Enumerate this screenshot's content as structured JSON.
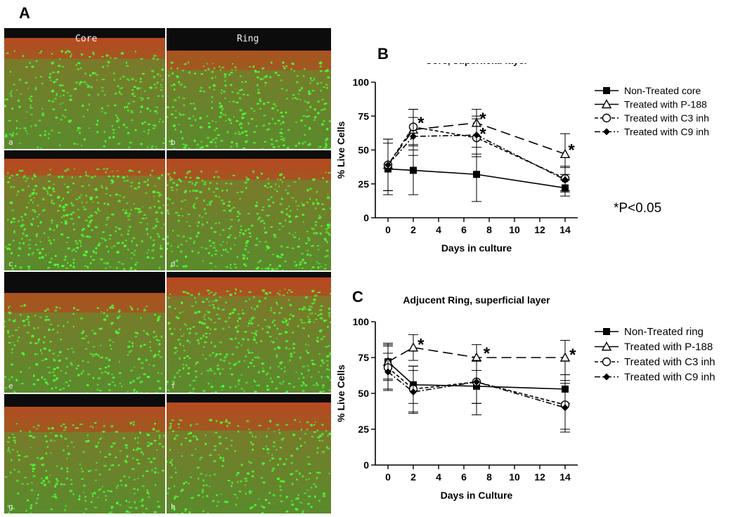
{
  "figure": {
    "panel_a_letter": "A",
    "panel_b_letter": "B",
    "panel_c_letter": "C",
    "micrographs": {
      "column_headers": [
        "Core",
        "Ring"
      ],
      "tiles": [
        "a",
        "b",
        "c",
        "d",
        "e",
        "f",
        "g",
        "h"
      ]
    },
    "significance_note": "*P<0.05"
  },
  "chart_data": [
    {
      "type": "line",
      "title": "Core, superficial layer",
      "xlabel": "Days in culture",
      "ylabel": "% Live Cells",
      "xlim": [
        -1,
        15
      ],
      "ylim": [
        0,
        100
      ],
      "xticks": [
        0,
        2,
        4,
        6,
        8,
        10,
        12,
        14
      ],
      "yticks": [
        0,
        25,
        50,
        75,
        100
      ],
      "legend_position": "right",
      "series": [
        {
          "name": "Non-Treated core",
          "marker": "filled-square",
          "dash": "solid",
          "x": [
            0,
            2,
            7,
            14
          ],
          "y": [
            36,
            35,
            32,
            22
          ],
          "err": [
            19,
            18,
            20,
            6
          ]
        },
        {
          "name": "Treated with P-188",
          "marker": "open-triangle",
          "dash": "long-dash",
          "x": [
            0,
            2,
            7,
            14
          ],
          "y": [
            39,
            65,
            70,
            47
          ],
          "err": [
            19,
            15,
            10,
            15
          ]
        },
        {
          "name": "Treated with C3 inh",
          "marker": "open-circle",
          "dash": "short-dash",
          "x": [
            0,
            2,
            7,
            14
          ],
          "y": [
            39,
            67,
            59,
            29
          ],
          "err": [
            19,
            13,
            14,
            9
          ]
        },
        {
          "name": "Treated with C9 inh",
          "marker": "filled-diamond",
          "dash": "dash-dot",
          "x": [
            0,
            2,
            7,
            14
          ],
          "y": [
            39,
            60,
            61,
            28
          ],
          "err": [
            19,
            14,
            14,
            9
          ]
        }
      ],
      "annotations": [
        {
          "text": "*",
          "x": 2.6,
          "y": 71
        },
        {
          "text": "*",
          "x": 7.5,
          "y": 74
        },
        {
          "text": "*",
          "x": 7.5,
          "y": 63
        },
        {
          "text": "*",
          "x": 14.5,
          "y": 51
        }
      ]
    },
    {
      "type": "line",
      "title": "Adjucent Ring, superficial layer",
      "xlabel": "Days in Culture",
      "ylabel": "% Live Cells",
      "xlim": [
        -1,
        15
      ],
      "ylim": [
        0,
        100
      ],
      "xticks": [
        0,
        2,
        4,
        6,
        8,
        10,
        12,
        14
      ],
      "yticks": [
        0,
        25,
        50,
        75,
        100
      ],
      "legend_position": "right",
      "series": [
        {
          "name": "Non-Treated ring",
          "marker": "filled-square",
          "dash": "solid",
          "x": [
            0,
            2,
            7,
            14
          ],
          "y": [
            72,
            56,
            55,
            53
          ],
          "err": [
            13,
            13,
            20,
            10
          ]
        },
        {
          "name": "Treated with P-188",
          "marker": "open-triangle",
          "dash": "long-dash",
          "x": [
            0,
            2,
            7,
            14
          ],
          "y": [
            72,
            82,
            75,
            75
          ],
          "err": [
            12,
            9,
            9,
            12
          ]
        },
        {
          "name": "Treated with C3 inh",
          "marker": "open-circle",
          "dash": "short-dash",
          "x": [
            0,
            2,
            7,
            14
          ],
          "y": [
            68,
            53,
            58,
            42
          ],
          "err": [
            15,
            16,
            15,
            17
          ]
        },
        {
          "name": "Treated with C9 inh",
          "marker": "filled-diamond",
          "dash": "dash-dot",
          "x": [
            0,
            2,
            7,
            14
          ],
          "y": [
            65,
            51,
            58,
            40
          ],
          "err": [
            13,
            15,
            15,
            17
          ]
        }
      ],
      "annotations": [
        {
          "text": "*",
          "x": 2.6,
          "y": 85
        },
        {
          "text": "*",
          "x": 7.8,
          "y": 79
        },
        {
          "text": "*",
          "x": 14.6,
          "y": 78
        }
      ]
    }
  ]
}
